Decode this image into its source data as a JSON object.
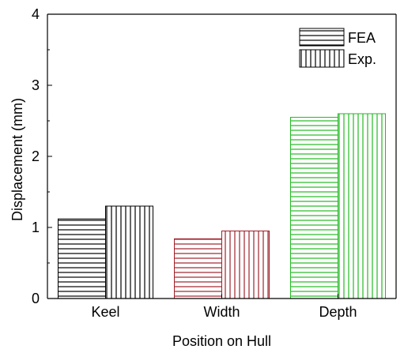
{
  "chart_data": {
    "type": "bar",
    "title": "",
    "xlabel": "Position on Hull",
    "ylabel": "Displacement (mm)",
    "categories": [
      "Keel",
      "Width",
      "Depth"
    ],
    "category_colors": [
      "#000000",
      "#a0202a",
      "#22bb22"
    ],
    "ylim": [
      0,
      4
    ],
    "yticks": [
      0,
      1,
      2,
      3,
      4
    ],
    "yticklabels": [
      "0",
      "1",
      "2",
      "3",
      "4"
    ],
    "series": [
      {
        "name": "FEA",
        "hatch": "horizontal",
        "values": [
          1.12,
          0.84,
          2.55
        ]
      },
      {
        "name": "Exp.",
        "hatch": "vertical",
        "values": [
          1.3,
          0.95,
          2.6
        ]
      }
    ],
    "legend_position": "top-right",
    "grid": false
  }
}
